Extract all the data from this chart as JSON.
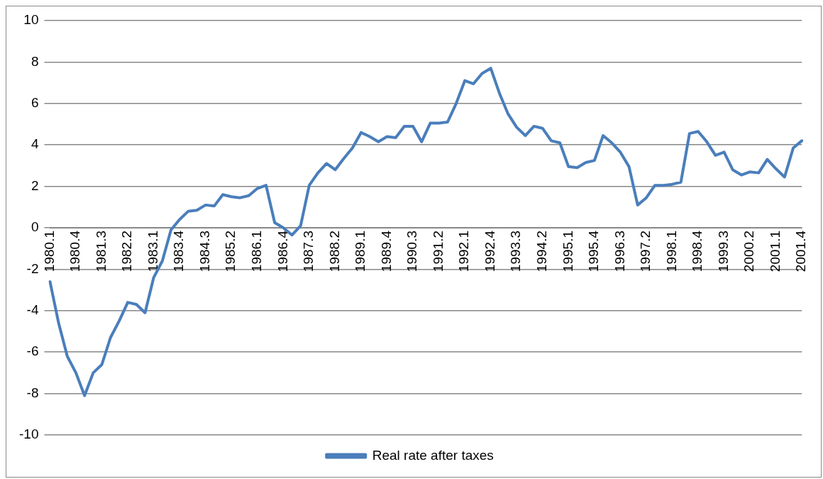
{
  "chart_data": {
    "type": "line",
    "categories": [
      "1980.1",
      null,
      null,
      "1980.4",
      null,
      null,
      "1981.3",
      null,
      null,
      "1982.2",
      null,
      null,
      "1983.1",
      null,
      null,
      "1983.4",
      null,
      null,
      "1984.3",
      null,
      null,
      "1985.2",
      null,
      null,
      "1986.1",
      null,
      null,
      "1986.4",
      null,
      null,
      "1987.3",
      null,
      null,
      "1988.2",
      null,
      null,
      "1989.1",
      null,
      null,
      "1989.4",
      null,
      null,
      "1990.3",
      null,
      null,
      "1991.2",
      null,
      null,
      "1992.1",
      null,
      null,
      "1992.4",
      null,
      null,
      "1993.3",
      null,
      null,
      "1994.2",
      null,
      null,
      "1995.1",
      null,
      null,
      "1995.4",
      null,
      null,
      "1996.3",
      null,
      null,
      "1997.2",
      null,
      null,
      "1998.1",
      null,
      null,
      "1998.4",
      null,
      null,
      "1999.3",
      null,
      null,
      "2000.2",
      null,
      null,
      "2001.1",
      null,
      null,
      "2001.4"
    ],
    "series": [
      {
        "name": "Real rate after taxes",
        "color": "#4a7ebb",
        "values": [
          -2.6,
          -4.6,
          -6.2,
          -7.0,
          -8.1,
          -7.0,
          -6.6,
          -5.3,
          -4.5,
          -3.6,
          -3.7,
          -4.1,
          -2.4,
          -1.6,
          -0.1,
          0.4,
          0.8,
          0.85,
          1.1,
          1.05,
          1.6,
          1.5,
          1.45,
          1.55,
          1.9,
          2.05,
          0.25,
          0.0,
          -0.35,
          0.1,
          2.05,
          2.65,
          3.1,
          2.8,
          3.35,
          3.85,
          4.6,
          4.4,
          4.15,
          4.4,
          4.35,
          4.9,
          4.9,
          4.15,
          5.05,
          5.05,
          5.1,
          6.0,
          7.1,
          6.95,
          7.45,
          7.7,
          6.5,
          5.5,
          4.85,
          4.45,
          4.9,
          4.8,
          4.2,
          4.1,
          2.95,
          2.9,
          3.15,
          3.25,
          4.45,
          4.1,
          3.65,
          2.95,
          1.1,
          1.45,
          2.05,
          2.05,
          2.1,
          2.2,
          4.55,
          4.65,
          4.15,
          3.5,
          3.65,
          2.8,
          2.55,
          2.7,
          2.65,
          3.3,
          2.85,
          2.45,
          3.85,
          4.2
        ]
      }
    ],
    "ylim": [
      -10,
      10
    ],
    "yticks": [
      -10,
      -8,
      -6,
      -4,
      -2,
      0,
      2,
      4,
      6,
      8,
      10
    ],
    "grid": "y",
    "legend": "bottom",
    "marker": "none",
    "line_style": "solid"
  }
}
